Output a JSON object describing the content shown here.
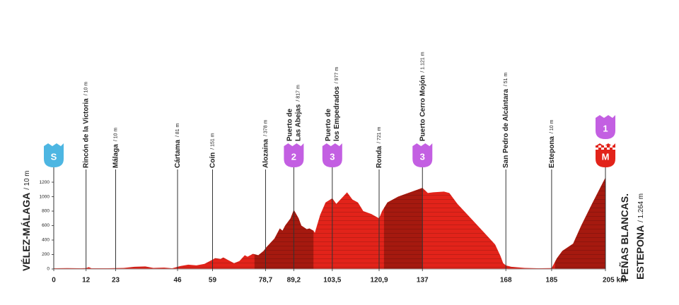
{
  "chart_data": {
    "type": "area",
    "xlim": [
      0,
      205
    ],
    "xticks": [
      0,
      12,
      23,
      46,
      59,
      {
        "value": 78.7,
        "label": "78,7"
      },
      {
        "value": 89.2,
        "label": "89,2"
      },
      {
        "value": 103.5,
        "label": "103,5"
      },
      {
        "value": 120.9,
        "label": "120,9"
      },
      137,
      168,
      185,
      {
        "value": 205,
        "label": "205 km"
      }
    ],
    "ylim": [
      0,
      1300
    ],
    "yticks": [
      0,
      200,
      400,
      600,
      800,
      1000,
      1200
    ],
    "profile": {
      "color": "#e2231a",
      "x": [
        0,
        5,
        10,
        12,
        13,
        14,
        20,
        26,
        30,
        34,
        37,
        41,
        44,
        47,
        50,
        53,
        56,
        58,
        60,
        62,
        63,
        65,
        67,
        69,
        71,
        72,
        74,
        76,
        78,
        79,
        82,
        84,
        85,
        86,
        88,
        89.2,
        91,
        92,
        94,
        95,
        96.5,
        97,
        99,
        101,
        103.5,
        105,
        107,
        109,
        111,
        113,
        115,
        118,
        120.9,
        122,
        124,
        126,
        128,
        131,
        134,
        137,
        139,
        141,
        145,
        147,
        150,
        155,
        160,
        164,
        166,
        167,
        168,
        170,
        175,
        180,
        185,
        187,
        189,
        191,
        193,
        196,
        200,
        205
      ],
      "values": [
        10,
        12,
        10,
        12,
        25,
        10,
        10,
        15,
        30,
        35,
        15,
        20,
        10,
        40,
        60,
        50,
        70,
        110,
        150,
        140,
        160,
        120,
        80,
        110,
        190,
        170,
        210,
        190,
        250,
        300,
        420,
        560,
        530,
        600,
        700,
        817,
        700,
        600,
        550,
        560,
        530,
        500,
        750,
        920,
        977,
        900,
        980,
        1060,
        960,
        920,
        800,
        760,
        700,
        800,
        920,
        960,
        1000,
        1040,
        1080,
        1121,
        1050,
        1060,
        1070,
        1050,
        900,
        700,
        500,
        340,
        180,
        80,
        50,
        30,
        15,
        10,
        12,
        150,
        250,
        300,
        350,
        600,
        900,
        1264
      ]
    },
    "climbs": [
      {
        "from": 74.6,
        "to": 96.5,
        "color": "#a5190f"
      },
      {
        "from": 122.7,
        "to": 137,
        "color": "#a5190f"
      },
      {
        "from": 186.3,
        "to": 205,
        "color": "#a5190f"
      }
    ],
    "waypoints": [
      {
        "name": [
          "VÉLEZ-MÁLAGA"
        ],
        "altitude": "/ 10 m",
        "badges": [
          {
            "text": "S",
            "color": "#4db6e2"
          }
        ]
      },
      {
        "name": [
          "Rincón de la Victoria"
        ],
        "altitude": "/ 10 m"
      },
      {
        "name": [
          "Málaga"
        ],
        "altitude": "/ 10 m"
      },
      {
        "name": [
          "Cártama"
        ],
        "altitude": "/ 81 m"
      },
      {
        "name": [
          "Coín"
        ],
        "altitude": "/ 151 m"
      },
      {
        "name": [
          "Alozaina"
        ],
        "altitude": "/ 378 m"
      },
      {
        "name": [
          "Puerto de",
          "Las Abejas"
        ],
        "altitude": "/ 817 m",
        "badges": [
          {
            "text": "2",
            "color": "#c35fe2"
          }
        ]
      },
      {
        "name": [
          "Puerto de",
          "los Empedrados"
        ],
        "altitude": "/ 977 m",
        "badges": [
          {
            "text": "3",
            "color": "#c35fe2"
          }
        ]
      },
      {
        "name": [
          "Ronda"
        ],
        "altitude": "/ 721 m"
      },
      {
        "name": [
          "Puerto Cerro Mojón"
        ],
        "altitude": "/ 1.121 m",
        "badges": [
          {
            "text": "3",
            "color": "#c35fe2"
          }
        ]
      },
      {
        "name": [
          "San Pedro de Alcántara"
        ],
        "altitude": "/ 51 m"
      },
      {
        "name": [
          "Estepona"
        ],
        "altitude": "/ 10 m"
      },
      {
        "name": [
          "PEÑAS BLANCAS.",
          "ESTEPONA"
        ],
        "altitude": "/ 1.264 m",
        "badges": [
          {
            "text": "M",
            "color": "#e2231a"
          },
          {
            "text": "1",
            "color": "#c35fe2"
          }
        ]
      }
    ]
  }
}
